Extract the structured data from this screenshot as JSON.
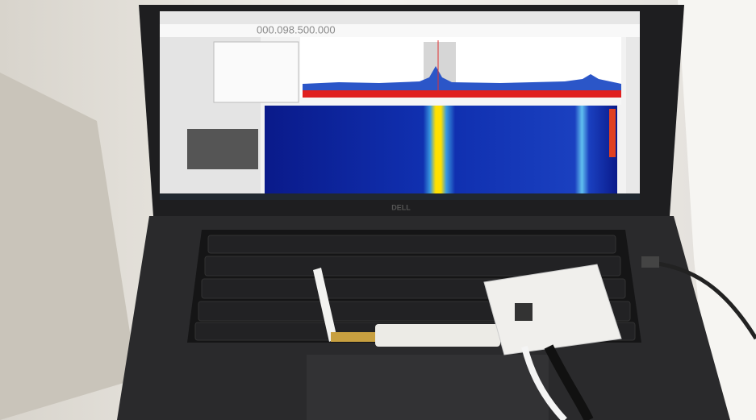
{
  "screen": {
    "frequency": "000.098.500.000"
  },
  "laptop": {
    "brand": "DELL"
  }
}
